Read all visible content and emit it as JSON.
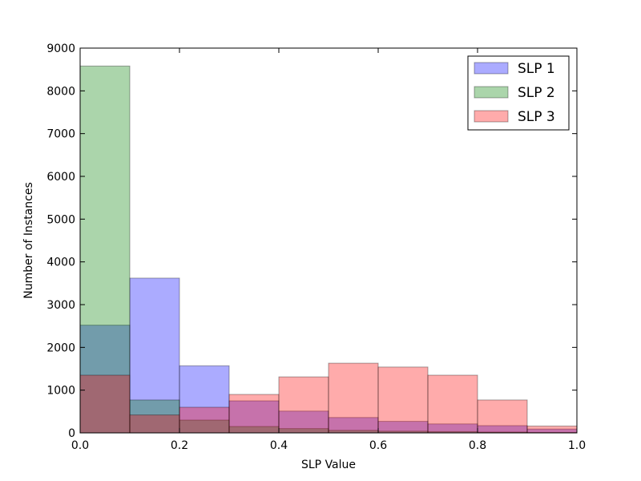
{
  "chart_data": {
    "type": "bar",
    "subtype": "histogram",
    "title": "",
    "xlabel": "SLP Value",
    "ylabel": "Number of Instances",
    "xlim": [
      0.0,
      1.0
    ],
    "ylim": [
      0,
      9000
    ],
    "x_ticks": [
      "0.0",
      "0.2",
      "0.4",
      "0.6",
      "0.8",
      "1.0"
    ],
    "y_ticks": [
      "0",
      "1000",
      "2000",
      "3000",
      "4000",
      "5000",
      "6000",
      "7000",
      "8000",
      "9000"
    ],
    "bin_edges": [
      0.0,
      0.1,
      0.2,
      0.3,
      0.4,
      0.5,
      0.6,
      0.7,
      0.8,
      0.9,
      1.0
    ],
    "grid": false,
    "legend_position": "top-right",
    "series": [
      {
        "name": "SLP 1",
        "color": "#0000ff",
        "values": [
          2520,
          3620,
          1570,
          750,
          510,
          360,
          270,
          210,
          170,
          90
        ]
      },
      {
        "name": "SLP 2",
        "color": "#008000",
        "values": [
          8580,
          770,
          300,
          150,
          100,
          60,
          40,
          30,
          20,
          10
        ]
      },
      {
        "name": "SLP 3",
        "color": "#ff0000",
        "values": [
          1350,
          420,
          600,
          900,
          1310,
          1630,
          1540,
          1350,
          770,
          160
        ]
      }
    ]
  }
}
